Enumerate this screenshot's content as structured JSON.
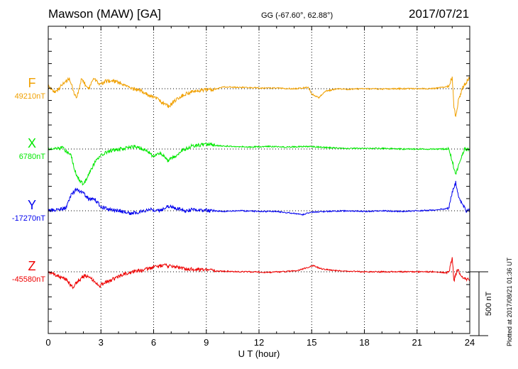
{
  "header": {
    "station": "Mawson (MAW)  [GA]",
    "coordinates": "GG (-67.60°,  62.88°)",
    "date": "2017/07/21"
  },
  "footer": {
    "plotted": "Plotted at 2017/08/21 01:36 UT"
  },
  "chart_data": {
    "type": "line",
    "title": "Mawson (MAW)  [GA]",
    "xlabel": "U T (hour)",
    "x_ticks": [
      0,
      3,
      6,
      9,
      12,
      15,
      18,
      21,
      24
    ],
    "xlim": [
      0,
      24
    ],
    "grid": "dotted vertical lines every 3 hours; dotted horizontal baseline per component",
    "scale_bar": "500 nT",
    "scale_nt": 500,
    "series": [
      {
        "name": "F",
        "baseline_label": "49210nT",
        "baseline": 49210,
        "color": "#f0a000",
        "points": [
          [
            0,
            49230
          ],
          [
            0.4,
            49180
          ],
          [
            0.8,
            49240
          ],
          [
            1.2,
            49290
          ],
          [
            1.6,
            49130
          ],
          [
            1.9,
            49290
          ],
          [
            2.3,
            49200
          ],
          [
            2.6,
            49300
          ],
          [
            2.9,
            49240
          ],
          [
            3.3,
            49270
          ],
          [
            3.7,
            49270
          ],
          [
            4.2,
            49250
          ],
          [
            4.7,
            49210
          ],
          [
            5.2,
            49200
          ],
          [
            5.7,
            49160
          ],
          [
            6.1,
            49140
          ],
          [
            6.5,
            49100
          ],
          [
            6.9,
            49070
          ],
          [
            7.3,
            49130
          ],
          [
            7.8,
            49170
          ],
          [
            8.3,
            49190
          ],
          [
            8.8,
            49200
          ],
          [
            9.3,
            49200
          ],
          [
            10,
            49225
          ],
          [
            11,
            49220
          ],
          [
            12,
            49215
          ],
          [
            13,
            49215
          ],
          [
            14,
            49210
          ],
          [
            14.8,
            49220
          ],
          [
            15,
            49170
          ],
          [
            15.4,
            49140
          ],
          [
            15.8,
            49190
          ],
          [
            16.5,
            49210
          ],
          [
            17,
            49205
          ],
          [
            18,
            49210
          ],
          [
            19,
            49208
          ],
          [
            20,
            49210
          ],
          [
            21,
            49210
          ],
          [
            22,
            49212
          ],
          [
            22.8,
            49230
          ],
          [
            23,
            49300
          ],
          [
            23.1,
            49070
          ],
          [
            23.2,
            48980
          ],
          [
            23.35,
            49120
          ],
          [
            23.6,
            49220
          ],
          [
            24,
            49300
          ]
        ]
      },
      {
        "name": "X",
        "baseline_label": "6780nT",
        "baseline": 6780,
        "color": "#00e800",
        "points": [
          [
            0,
            6780
          ],
          [
            0.8,
            6790
          ],
          [
            1.3,
            6730
          ],
          [
            1.6,
            6570
          ],
          [
            2.0,
            6500
          ],
          [
            2.3,
            6580
          ],
          [
            2.7,
            6690
          ],
          [
            3.1,
            6740
          ],
          [
            3.6,
            6770
          ],
          [
            4.2,
            6780
          ],
          [
            4.7,
            6800
          ],
          [
            5.2,
            6790
          ],
          [
            5.7,
            6760
          ],
          [
            6.0,
            6720
          ],
          [
            6.4,
            6750
          ],
          [
            6.8,
            6690
          ],
          [
            7.2,
            6720
          ],
          [
            7.6,
            6770
          ],
          [
            8.1,
            6800
          ],
          [
            8.6,
            6810
          ],
          [
            9.1,
            6815
          ],
          [
            9.8,
            6805
          ],
          [
            10.5,
            6800
          ],
          [
            11.5,
            6795
          ],
          [
            12.5,
            6800
          ],
          [
            13.5,
            6795
          ],
          [
            14.5,
            6800
          ],
          [
            15,
            6800
          ],
          [
            16,
            6790
          ],
          [
            17,
            6785
          ],
          [
            18,
            6785
          ],
          [
            19,
            6785
          ],
          [
            20,
            6780
          ],
          [
            21,
            6780
          ],
          [
            22,
            6780
          ],
          [
            22.8,
            6780
          ],
          [
            23.0,
            6690
          ],
          [
            23.2,
            6570
          ],
          [
            23.4,
            6680
          ],
          [
            23.7,
            6780
          ],
          [
            24,
            6770
          ]
        ]
      },
      {
        "name": "Y",
        "baseline_label": "-17270nT",
        "baseline": -17270,
        "color": "#0000ee",
        "points": [
          [
            0,
            -17270
          ],
          [
            0.6,
            -17260
          ],
          [
            1.0,
            -17250
          ],
          [
            1.3,
            -17150
          ],
          [
            1.6,
            -17100
          ],
          [
            2.0,
            -17130
          ],
          [
            2.3,
            -17180
          ],
          [
            2.6,
            -17170
          ],
          [
            3.0,
            -17240
          ],
          [
            3.5,
            -17260
          ],
          [
            4.1,
            -17270
          ],
          [
            4.7,
            -17290
          ],
          [
            5.2,
            -17280
          ],
          [
            5.8,
            -17260
          ],
          [
            6.4,
            -17270
          ],
          [
            6.8,
            -17230
          ],
          [
            7.3,
            -17250
          ],
          [
            7.8,
            -17270
          ],
          [
            8.3,
            -17260
          ],
          [
            8.8,
            -17265
          ],
          [
            9.4,
            -17270
          ],
          [
            10,
            -17275
          ],
          [
            11,
            -17270
          ],
          [
            12,
            -17275
          ],
          [
            13,
            -17275
          ],
          [
            14,
            -17290
          ],
          [
            14.5,
            -17300
          ],
          [
            15,
            -17280
          ],
          [
            16,
            -17275
          ],
          [
            17,
            -17270
          ],
          [
            18,
            -17275
          ],
          [
            19,
            -17270
          ],
          [
            20,
            -17275
          ],
          [
            21,
            -17270
          ],
          [
            22,
            -17265
          ],
          [
            22.8,
            -17250
          ],
          [
            23.0,
            -17130
          ],
          [
            23.2,
            -17050
          ],
          [
            23.4,
            -17170
          ],
          [
            23.8,
            -17270
          ],
          [
            24,
            -17260
          ]
        ]
      },
      {
        "name": "Z",
        "baseline_label": "-45580nT",
        "baseline": -45580,
        "color": "#ee0000",
        "points": [
          [
            0,
            -45580
          ],
          [
            0.5,
            -45610
          ],
          [
            1.0,
            -45640
          ],
          [
            1.4,
            -45700
          ],
          [
            1.7,
            -45650
          ],
          [
            2.1,
            -45610
          ],
          [
            2.5,
            -45640
          ],
          [
            2.9,
            -45690
          ],
          [
            3.3,
            -45660
          ],
          [
            3.8,
            -45630
          ],
          [
            4.3,
            -45600
          ],
          [
            4.8,
            -45580
          ],
          [
            5.3,
            -45570
          ],
          [
            5.8,
            -45550
          ],
          [
            6.2,
            -45540
          ],
          [
            6.6,
            -45530
          ],
          [
            7.1,
            -45540
          ],
          [
            7.6,
            -45550
          ],
          [
            8.1,
            -45560
          ],
          [
            8.6,
            -45565
          ],
          [
            9.2,
            -45570
          ],
          [
            9.8,
            -45575
          ],
          [
            10.5,
            -45578
          ],
          [
            11.5,
            -45580
          ],
          [
            12.5,
            -45585
          ],
          [
            13.5,
            -45578
          ],
          [
            14.2,
            -45570
          ],
          [
            14.8,
            -45545
          ],
          [
            15.1,
            -45530
          ],
          [
            15.5,
            -45555
          ],
          [
            16.2,
            -45570
          ],
          [
            17,
            -45575
          ],
          [
            18,
            -45580
          ],
          [
            19,
            -45580
          ],
          [
            20,
            -45580
          ],
          [
            21,
            -45580
          ],
          [
            22,
            -45580
          ],
          [
            22.8,
            -45590
          ],
          [
            23.0,
            -45470
          ],
          [
            23.1,
            -45650
          ],
          [
            23.3,
            -45560
          ],
          [
            23.6,
            -45620
          ],
          [
            24,
            -45650
          ]
        ]
      }
    ]
  }
}
